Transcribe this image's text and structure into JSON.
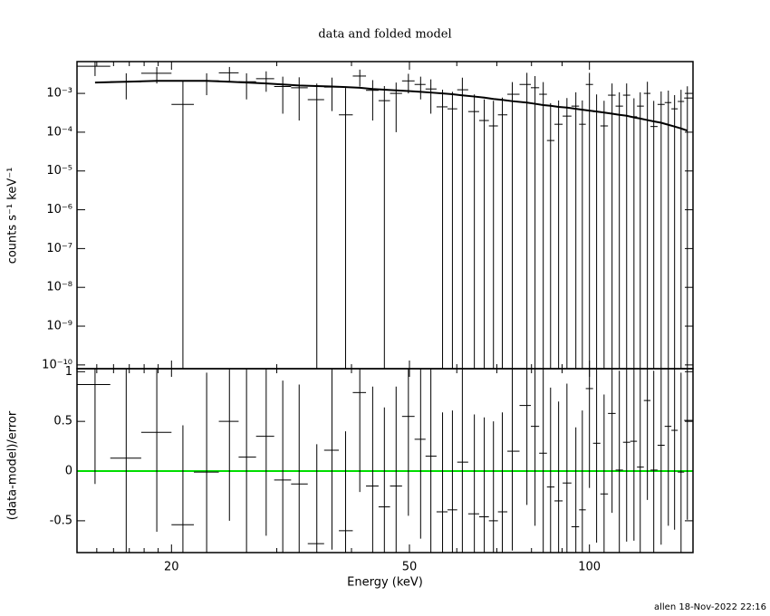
{
  "chart_data": [
    {
      "type": "errorbar",
      "title": "data and folded model",
      "ylabel": "counts s⁻¹ keV⁻¹",
      "ylog": true,
      "ylim": [
        8e-11,
        0.0066
      ],
      "yticks": [
        {
          "value": 1e-10,
          "label": "10⁻¹⁰"
        },
        {
          "value": 1e-09,
          "label": "10⁻⁹"
        },
        {
          "value": 1e-08,
          "label": "10⁻⁸"
        },
        {
          "value": 1e-07,
          "label": "10⁻⁷"
        },
        {
          "value": 1e-06,
          "label": "10⁻⁶"
        },
        {
          "value": 1e-05,
          "label": "10⁻⁵"
        },
        {
          "value": 0.0001,
          "label": "10⁻⁴"
        },
        {
          "value": 0.001,
          "label": "10⁻³"
        }
      ],
      "x": [
        14.9,
        16.8,
        18.9,
        20.9,
        22.9,
        25.0,
        26.7,
        28.8,
        30.7,
        32.7,
        35.0,
        37.1,
        39.1,
        41.3,
        43.4,
        45.4,
        47.5,
        49.8,
        52.2,
        54.3,
        56.8,
        59.0,
        61.3,
        64.2,
        66.7,
        69.1,
        71.5,
        74.3,
        78.6,
        81.1,
        83.7,
        86.1,
        88.8,
        91.7,
        94.9,
        97.3,
        100,
        102.8,
        105.8,
        109.1,
        112.2,
        115.4,
        118.7,
        121.6,
        125,
        128.1,
        131.8,
        135.5,
        138.8,
        142.3,
        145.8
      ],
      "bins": [
        13.9,
        15.8,
        17.8,
        20.0,
        21.8,
        24.0,
        25.9,
        27.7,
        29.7,
        31.7,
        33.8,
        36.0,
        38.1,
        40.2,
        42.3,
        44.4,
        46.4,
        48.6,
        51.0,
        53.2,
        55.5,
        57.9,
        60.1,
        62.7,
        65.4,
        67.9,
        70.3,
        72.9,
        76.4,
        79.8,
        82.4,
        84.9,
        87.4,
        90.2,
        93.3,
        96.1,
        98.6,
        101.4,
        104.3,
        107.4,
        110.6,
        113.8,
        117.0,
        120.1,
        123.3,
        126.5,
        130.0,
        133.6,
        137.1,
        140.5,
        144.0,
        149
      ],
      "series": [
        {
          "color": "#000000",
          "style": "errorbar",
          "values": [
            0.005,
            0.002,
            0.0033,
            0.00052,
            0.0021,
            0.0034,
            0.002,
            0.0024,
            0.0015,
            0.0014,
            0.00069,
            0.00145,
            0.00028,
            0.0028,
            0.0012,
            0.00065,
            0.001,
            0.0021,
            0.0017,
            0.0013,
            0.00045,
            0.0004,
            0.00124,
            0.00034,
            0.0002,
            0.000145,
            0.00028,
            0.00095,
            0.0017,
            0.0014,
            0.00095,
            6.1e-05,
            0.00016,
            0.00026,
            0.00047,
            0.00016,
            0.0017,
            0.00034,
            0.000145,
            0.0009,
            0.00047,
            0.0009,
            0.00025,
            0.00047,
            0.001,
            0.00014,
            0.00052,
            0.00058,
            0.0004,
            0.00062,
            0.00076
          ],
          "errors": [
            0.0022,
            0.0013,
            0.0015,
            0.0015,
            0.0012,
            0.0014,
            0.0013,
            0.0013,
            0.0012,
            0.0012,
            0.0011,
            0.0011,
            0.0011,
            0.0013,
            0.001,
            0.0009,
            0.0009,
            0.0011,
            0.001,
            0.001,
            0.0008,
            0.0007,
            0.0013,
            0.0006,
            0.0005,
            0.0005,
            0.0005,
            0.001,
            0.0017,
            0.0014,
            0.001,
            0.0005,
            0.0005,
            0.0005,
            0.0006,
            0.0005,
            0.0017,
            0.0006,
            0.0005,
            0.0009,
            0.0006,
            0.0009,
            0.0005,
            0.0006,
            0.001,
            0.0005,
            0.0006,
            0.0006,
            0.0005,
            0.00062,
            0.00076
          ]
        },
        {
          "color": "#000000",
          "style": "line",
          "values": [
            0.0019,
            0.002,
            0.0021,
            0.0021,
            0.0021,
            0.002,
            0.0019,
            0.0018,
            0.0017,
            0.0016,
            0.00155,
            0.0015,
            0.00145,
            0.0014,
            0.0013,
            0.00125,
            0.0012,
            0.00115,
            0.0011,
            0.00105,
            0.001,
            0.00095,
            0.00089,
            0.00083,
            0.00078,
            0.00072,
            0.00068,
            0.00063,
            0.00058,
            0.00054,
            0.0005,
            0.00048,
            0.00045,
            0.00043,
            0.0004,
            0.00038,
            0.00036,
            0.00034,
            0.00032,
            0.0003,
            0.00028,
            0.000265,
            0.00024,
            0.000225,
            0.000205,
            0.00019,
            0.000175,
            0.000155,
            0.00014,
            0.000125,
            0.00011
          ]
        }
      ]
    },
    {
      "type": "errorbar",
      "ylabel": "(data-model)/error",
      "xlabel": "Energy (keV)",
      "xlog": true,
      "xlim": [
        13.9,
        149
      ],
      "xticks": [
        20,
        50,
        100
      ],
      "xminorticks": [
        15,
        16,
        17,
        18,
        19,
        30,
        40,
        60,
        70,
        80,
        90
      ],
      "ylim": [
        -0.82,
        1.03
      ],
      "yticks": [
        -0.5,
        0,
        0.5,
        1
      ],
      "hline": {
        "value": 0,
        "color": "#00dd00"
      },
      "series": [
        {
          "color": "#000000",
          "style": "errorbar",
          "values": [
            0.87,
            0.13,
            0.39,
            -0.54,
            -0.01,
            0.5,
            0.14,
            0.35,
            -0.09,
            -0.13,
            -0.73,
            0.21,
            -0.6,
            0.79,
            -0.15,
            -0.36,
            -0.15,
            0.55,
            0.32,
            0.15,
            -0.41,
            -0.39,
            0.09,
            -0.43,
            -0.46,
            -0.5,
            -0.41,
            0.2,
            0.66,
            0.45,
            0.18,
            -0.16,
            -0.3,
            -0.12,
            -0.56,
            -0.39,
            0.83,
            0.28,
            -0.23,
            0.58,
            0.01,
            0.29,
            0.3,
            0.04,
            0.71,
            0.01,
            0.26,
            0.45,
            0.41,
            -0.01,
            0.51
          ],
          "errors": [
            1,
            1,
            1,
            1,
            1,
            1,
            1,
            1,
            1,
            1,
            1,
            1,
            1,
            1,
            1,
            1,
            1,
            1,
            1,
            1,
            1,
            1,
            1,
            1,
            1,
            1,
            1,
            1,
            1,
            1,
            1,
            1,
            1,
            1,
            1,
            1,
            1,
            1,
            1,
            1,
            1,
            1,
            1,
            1,
            1,
            1,
            1,
            1,
            1,
            1,
            1
          ]
        }
      ]
    }
  ],
  "footer": "allen 18-Nov-2022 22:16"
}
